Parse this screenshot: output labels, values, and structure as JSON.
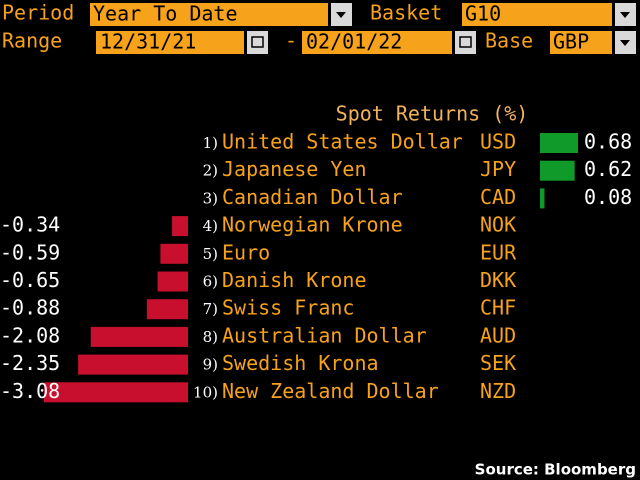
{
  "controls": {
    "period_label": "Period",
    "period": "Year To Date",
    "basket_label": "Basket",
    "basket": "G10",
    "range_label": "Range",
    "start": "12/31/21",
    "separator": "-",
    "end": "02/01/22",
    "base_label": "Base",
    "base": "GBP"
  },
  "chart_data": {
    "type": "bar",
    "title": "Spot Returns (%)",
    "ranks": [
      "1)",
      "2)",
      "3)",
      "4)",
      "5)",
      "6)",
      "7)",
      "8)",
      "9)",
      "10)"
    ],
    "categories": [
      "United States Dollar",
      "Japanese Yen",
      "Canadian Dollar",
      "Norwegian Krone",
      "Euro",
      "Danish Krone",
      "Swiss Franc",
      "Australian Dollar",
      "Swedish Krona",
      "New Zealand Dollar"
    ],
    "codes": [
      "USD",
      "JPY",
      "CAD",
      "NOK",
      "EUR",
      "DKK",
      "CHF",
      "AUD",
      "SEK",
      "NZD"
    ],
    "values": [
      0.68,
      0.62,
      0.08,
      -0.34,
      -0.59,
      -0.65,
      -0.88,
      -2.08,
      -2.35,
      -3.08
    ],
    "positive_color": "#0f9a2a",
    "negative_color": "#c8102e",
    "source": "Source: Bloomberg"
  }
}
